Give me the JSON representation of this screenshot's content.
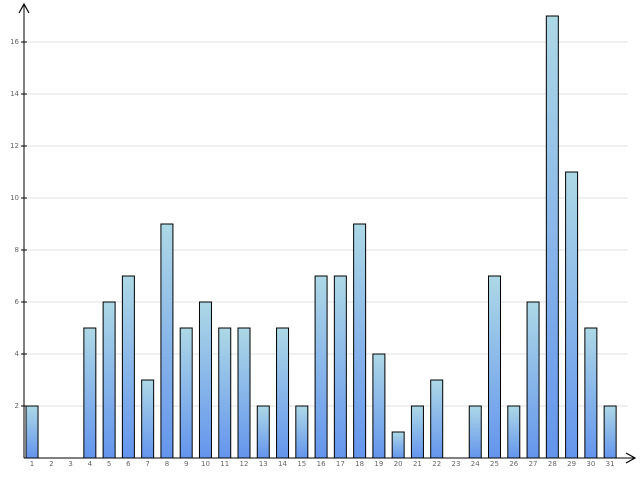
{
  "chart_data": {
    "type": "bar",
    "categories": [
      "1",
      "2",
      "3",
      "4",
      "5",
      "6",
      "7",
      "8",
      "9",
      "10",
      "11",
      "12",
      "13",
      "14",
      "15",
      "16",
      "17",
      "18",
      "19",
      "20",
      "21",
      "22",
      "23",
      "24",
      "25",
      "26",
      "27",
      "28",
      "29",
      "30",
      "31"
    ],
    "values": [
      2,
      0,
      0,
      5,
      6,
      7,
      3,
      9,
      5,
      6,
      5,
      5,
      2,
      5,
      2,
      7,
      7,
      9,
      4,
      1,
      2,
      3,
      0,
      2,
      7,
      2,
      6,
      17,
      11,
      5,
      2
    ],
    "gradient": [
      "#add8e6",
      "#6495ed"
    ],
    "ylim": [
      0,
      17.5
    ],
    "yticks": [
      2,
      4,
      6,
      8,
      10,
      12,
      14,
      16
    ],
    "grid": true
  }
}
